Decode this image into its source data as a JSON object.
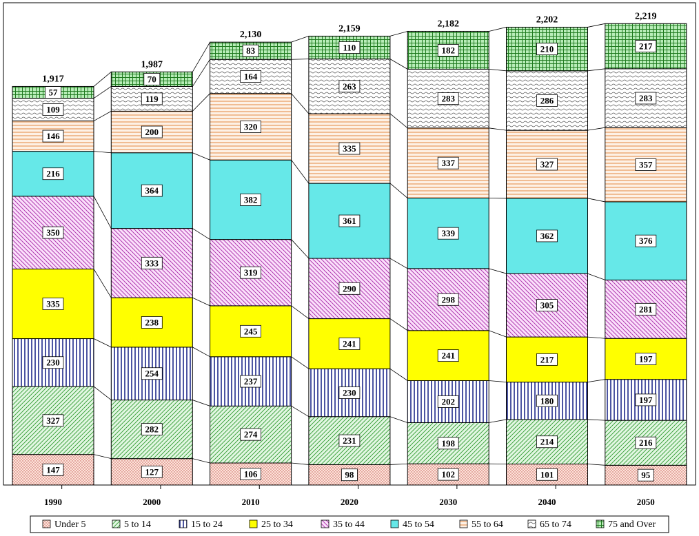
{
  "chart_data": {
    "type": "bar",
    "stacked": true,
    "title": "",
    "xlabel": "",
    "ylabel": "",
    "ylim": [
      0,
      2300
    ],
    "grid": false,
    "legend_position": "bottom",
    "categories": [
      "1990",
      "2000",
      "2010",
      "2020",
      "2030",
      "2040",
      "2050"
    ],
    "totals": [
      "1,917",
      "1,987",
      "2,130",
      "2,159",
      "2,182",
      "2,202",
      "2,219"
    ],
    "series": [
      {
        "name": "Under 5",
        "color": "#fbd5c6",
        "pattern": "dots",
        "values": [
          147,
          127,
          106,
          98,
          102,
          101,
          95
        ]
      },
      {
        "name": "5 to 14",
        "color": "#c6efce",
        "pattern": "diagonal",
        "values": [
          327,
          282,
          274,
          231,
          198,
          214,
          216
        ]
      },
      {
        "name": "15 to 24",
        "color": "#ffffff",
        "pattern": "vertical",
        "values": [
          230,
          254,
          237,
          230,
          202,
          180,
          197
        ]
      },
      {
        "name": "25 to 34",
        "color": "#ffff00",
        "pattern": "solid",
        "values": [
          335,
          238,
          245,
          241,
          241,
          217,
          197
        ]
      },
      {
        "name": "35 to 44",
        "color": "#f6c8f6",
        "pattern": "diagonal",
        "values": [
          350,
          333,
          319,
          290,
          298,
          305,
          281
        ]
      },
      {
        "name": "45 to 54",
        "color": "#66e6e6",
        "pattern": "solid",
        "values": [
          216,
          364,
          382,
          361,
          339,
          362,
          376
        ]
      },
      {
        "name": "55 to 64",
        "color": "#fbe3cf",
        "pattern": "horizontal",
        "values": [
          146,
          200,
          320,
          335,
          337,
          327,
          357
        ]
      },
      {
        "name": "65 to 74",
        "color": "#ffffff",
        "pattern": "wave",
        "values": [
          109,
          119,
          164,
          263,
          283,
          286,
          283
        ]
      },
      {
        "name": "75 and Over",
        "color": "#99e699",
        "pattern": "grid",
        "values": [
          57,
          70,
          83,
          110,
          182,
          210,
          217
        ]
      }
    ]
  }
}
